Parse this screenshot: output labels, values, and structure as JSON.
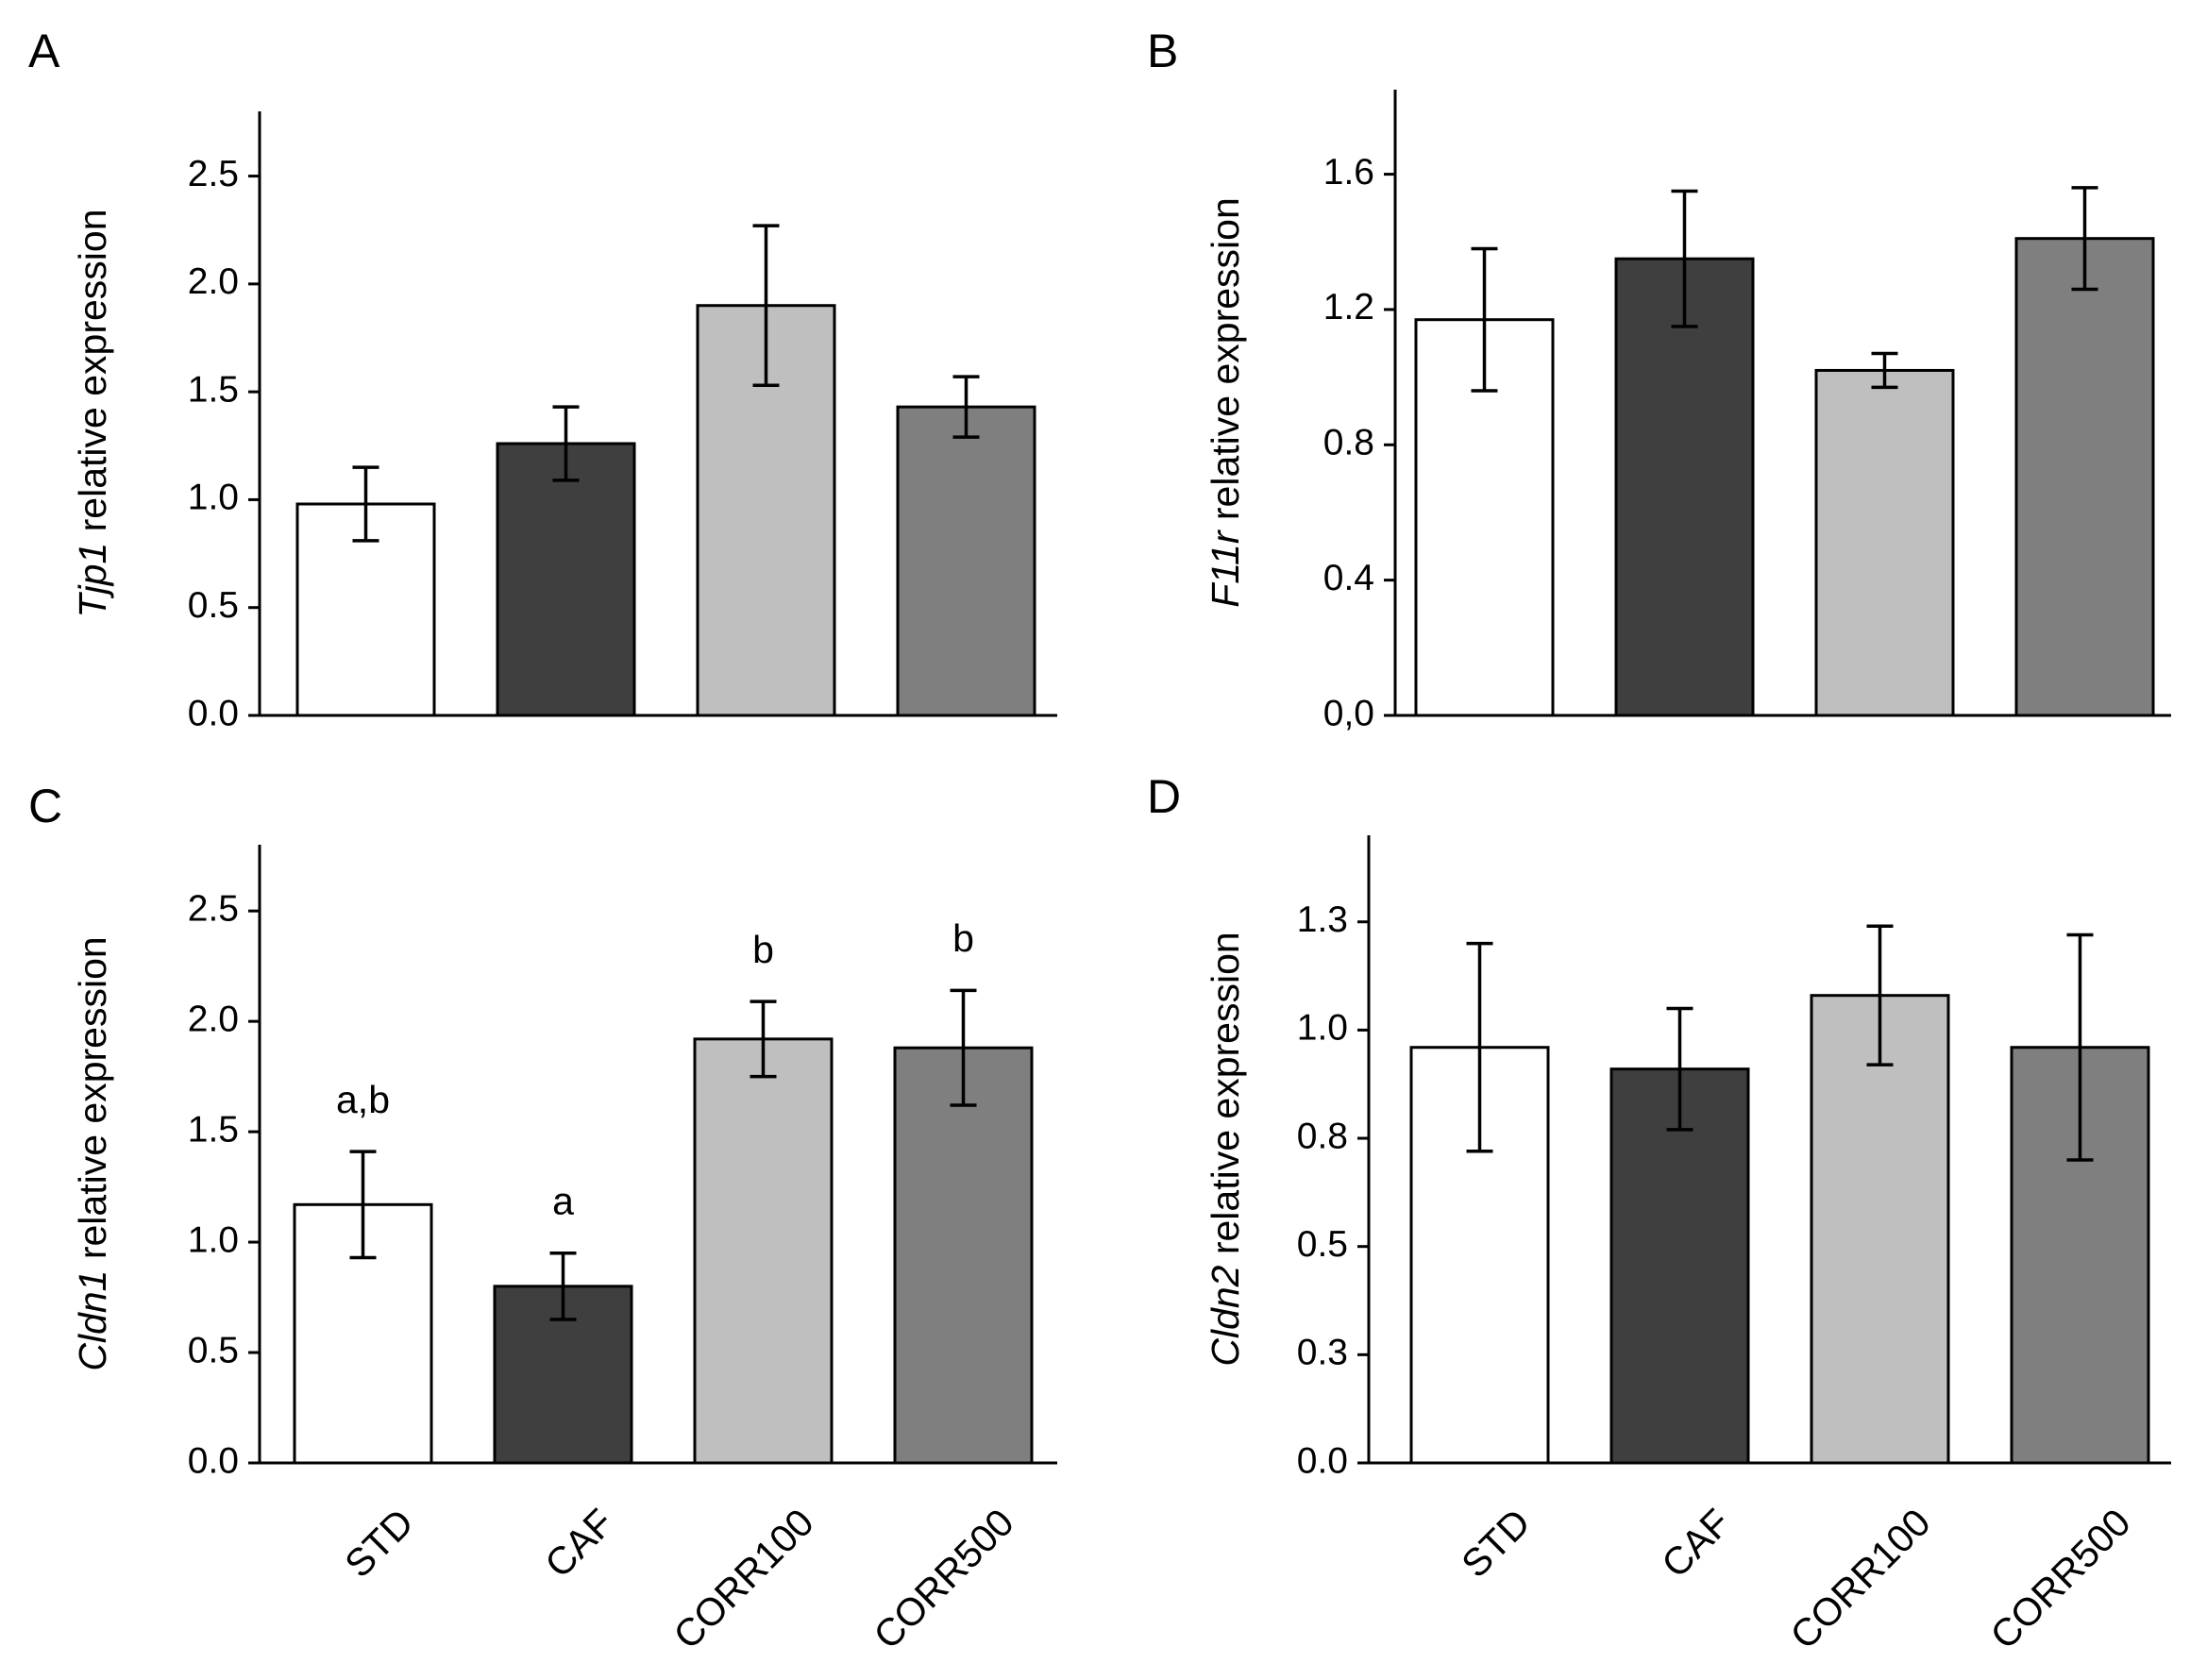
{
  "chart_data": [
    {
      "type": "bar",
      "panel": "A",
      "gene": "Tjp1",
      "ylabel_rest": " relative expression",
      "categories": [
        "STD",
        "CAF",
        "CORR100",
        "CORR500"
      ],
      "values": [
        0.98,
        1.26,
        1.9,
        1.43
      ],
      "errors": [
        0.17,
        0.17,
        0.37,
        0.14
      ],
      "colors": [
        "#ffffff",
        "#3f3f3f",
        "#bfbfbf",
        "#7f7f7f"
      ],
      "ylim": [
        0,
        2.8
      ],
      "yticks": [
        0,
        0.5,
        1.0,
        1.5,
        2.0,
        2.5
      ],
      "yticklabels": [
        "0.0",
        "0.5",
        "1.0",
        "1.5",
        "2.0",
        "2.5"
      ],
      "show_xlabels": false,
      "annotations": [
        "",
        "",
        "",
        ""
      ]
    },
    {
      "type": "bar",
      "panel": "B",
      "gene": "F11r",
      "ylabel_rest": " relative expression",
      "categories": [
        "STD",
        "CAF",
        "CORR100",
        "CORR500"
      ],
      "values": [
        1.17,
        1.35,
        1.02,
        1.41
      ],
      "errors": [
        0.21,
        0.2,
        0.05,
        0.15
      ],
      "colors": [
        "#ffffff",
        "#3f3f3f",
        "#bfbfbf",
        "#7f7f7f"
      ],
      "ylim": [
        0,
        1.85
      ],
      "yticks": [
        0,
        0.4,
        0.8,
        1.2,
        1.6
      ],
      "yticklabels": [
        "0,0",
        "0.4",
        "0.8",
        "1.2",
        "1.6"
      ],
      "show_xlabels": false,
      "annotations": [
        "",
        "",
        "",
        ""
      ]
    },
    {
      "type": "bar",
      "panel": "C",
      "gene": "Cldn1",
      "ylabel_rest": " relative expression",
      "categories": [
        "STD",
        "CAF",
        "CORR100",
        "CORR500"
      ],
      "values": [
        1.17,
        0.8,
        1.92,
        1.88
      ],
      "errors": [
        0.24,
        0.15,
        0.17,
        0.26
      ],
      "colors": [
        "#ffffff",
        "#3f3f3f",
        "#bfbfbf",
        "#7f7f7f"
      ],
      "ylim": [
        0,
        2.8
      ],
      "yticks": [
        0,
        0.5,
        1.0,
        1.5,
        2.0,
        2.5
      ],
      "yticklabels": [
        "0.0",
        "0.5",
        "1.0",
        "1.5",
        "2.0",
        "2.5"
      ],
      "show_xlabels": true,
      "annotations": [
        "a,b",
        "a",
        "b",
        "b"
      ]
    },
    {
      "type": "bar",
      "panel": "D",
      "gene": "Cldn2",
      "ylabel_rest": " relative expression",
      "categories": [
        "STD",
        "CAF",
        "CORR100",
        "CORR500"
      ],
      "values": [
        0.96,
        0.91,
        1.08,
        0.96
      ],
      "errors": [
        0.24,
        0.14,
        0.16,
        0.26
      ],
      "colors": [
        "#ffffff",
        "#3f3f3f",
        "#bfbfbf",
        "#7f7f7f"
      ],
      "ylim": [
        0,
        1.45
      ],
      "yticks": [
        0,
        0.25,
        0.5,
        0.75,
        1.0,
        1.25
      ],
      "yticklabels": [
        "0.0",
        "0.3",
        "0.5",
        "0.8",
        "1.0",
        "1.3"
      ],
      "show_xlabels": true,
      "annotations": [
        "",
        "",
        "",
        ""
      ]
    }
  ]
}
